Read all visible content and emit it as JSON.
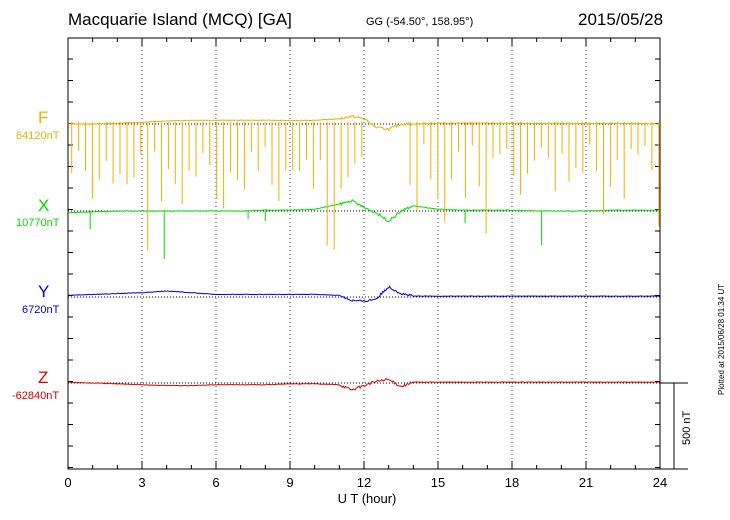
{
  "header": {
    "station": "Macquarie Island (MCQ)  [GA]",
    "coordinates": "GG (-54.50°, 158.95°)",
    "date": "2015/05/28"
  },
  "footer": {
    "plotted_note": "Plotted at 2015/06/28 01:34 UT"
  },
  "colors": {
    "F": "#f0b000",
    "X": "#00dd00",
    "Y": "#0000dd",
    "Z": "#dd0000"
  },
  "chart_data": {
    "type": "line",
    "xlabel": "U T (hour)",
    "x_ticks": [
      "0",
      "3",
      "6",
      "9",
      "12",
      "15",
      "18",
      "21",
      "24"
    ],
    "xlim": [
      0,
      24
    ],
    "scale_bar": "500 nT",
    "grid": "dotted vertical lines every 3 hours; dotted baseline per component",
    "series": [
      {
        "name": "F",
        "baseline_label": "64120nT",
        "color": "#f0b000",
        "x": [
          0,
          1,
          2,
          3,
          4,
          5,
          6,
          7,
          8,
          9,
          10,
          11,
          11.5,
          12,
          12.5,
          13,
          13.5,
          14,
          15,
          16,
          17,
          18,
          19,
          20,
          21,
          22,
          23,
          24
        ],
        "values": [
          0,
          0,
          5,
          10,
          18,
          22,
          22,
          22,
          22,
          20,
          22,
          30,
          45,
          30,
          -20,
          -30,
          0,
          0,
          5,
          5,
          5,
          3,
          3,
          3,
          3,
          3,
          3,
          0
        ]
      },
      {
        "name": "X",
        "baseline_label": "10770nT",
        "color": "#00dd00",
        "x": [
          0,
          1,
          2,
          3,
          4,
          5,
          6,
          7,
          8,
          9,
          10,
          11,
          11.5,
          12,
          12.5,
          13,
          13.5,
          14,
          15,
          16,
          17,
          18,
          19,
          20,
          21,
          22,
          23,
          24
        ],
        "values": [
          -10,
          -5,
          0,
          0,
          0,
          0,
          0,
          0,
          5,
          5,
          10,
          40,
          60,
          20,
          -10,
          -60,
          0,
          30,
          10,
          5,
          5,
          5,
          0,
          0,
          0,
          5,
          5,
          5
        ]
      },
      {
        "name": "Y",
        "baseline_label": "6720nT",
        "color": "#0000dd",
        "x": [
          0,
          1,
          2,
          3,
          4,
          5,
          6,
          7,
          8,
          9,
          10,
          11,
          11.5,
          12,
          12.5,
          13,
          13.5,
          14,
          15,
          16,
          17,
          18,
          19,
          20,
          21,
          22,
          23,
          24
        ],
        "values": [
          10,
          15,
          20,
          25,
          35,
          25,
          15,
          15,
          15,
          15,
          15,
          10,
          -20,
          -25,
          -10,
          60,
          20,
          5,
          5,
          5,
          5,
          5,
          5,
          5,
          5,
          5,
          5,
          5
        ]
      },
      {
        "name": "Z",
        "baseline_label": "-62840nT",
        "color": "#dd0000",
        "x": [
          0,
          1,
          2,
          3,
          4,
          5,
          6,
          7,
          8,
          9,
          10,
          11,
          11.5,
          12,
          12.5,
          13,
          13.5,
          14,
          15,
          16,
          17,
          18,
          19,
          20,
          21,
          22,
          23,
          24
        ],
        "values": [
          5,
          0,
          -5,
          -10,
          -15,
          -15,
          -10,
          -10,
          -10,
          -5,
          -5,
          -10,
          -40,
          -15,
          10,
          20,
          -20,
          5,
          5,
          5,
          5,
          5,
          5,
          5,
          5,
          5,
          5,
          5
        ]
      }
    ]
  }
}
